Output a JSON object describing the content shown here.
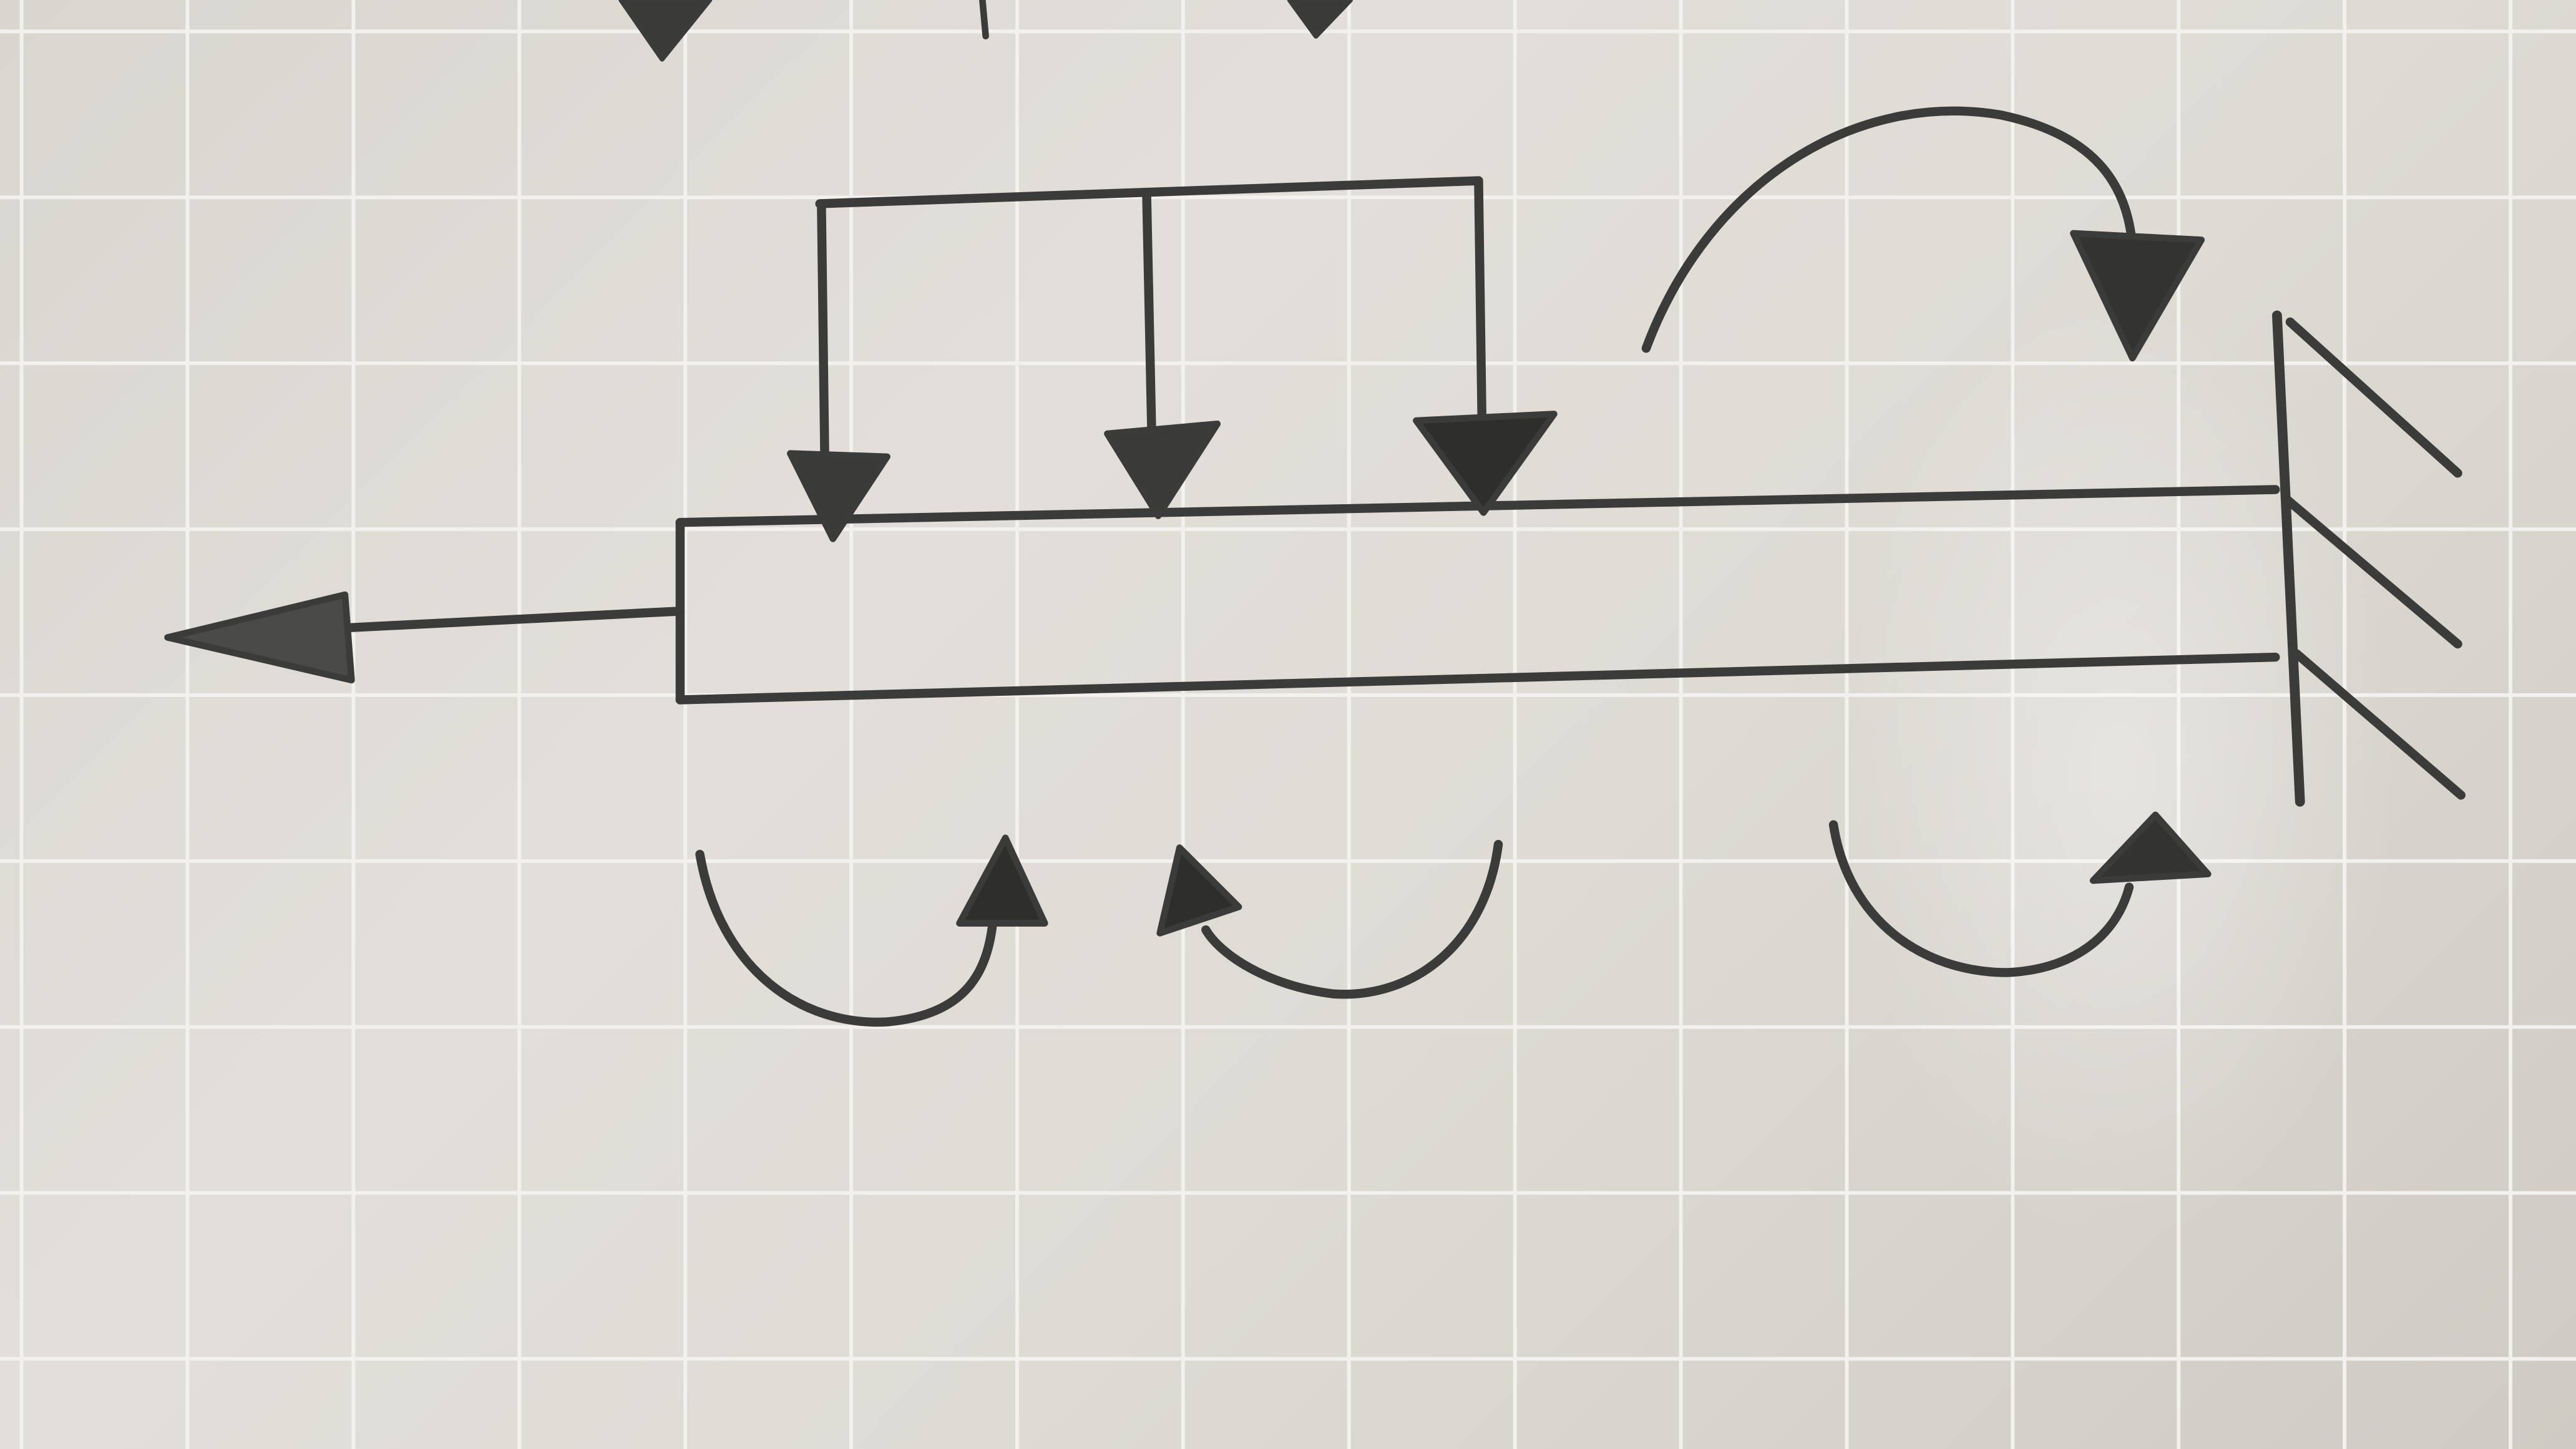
{
  "figure": {
    "kind": "hand-drawn beam loading sketch on grid paper",
    "elements": [
      "cantilever-beam",
      "fixed-wall-support",
      "axial-force-arrow",
      "distributed-load",
      "moment-arrows"
    ]
  },
  "colors": {
    "paper": "#dedbd5",
    "grid": "#f4f2ee",
    "ink": "#3b3b3a",
    "ink_fill": "#2e2e2d"
  }
}
